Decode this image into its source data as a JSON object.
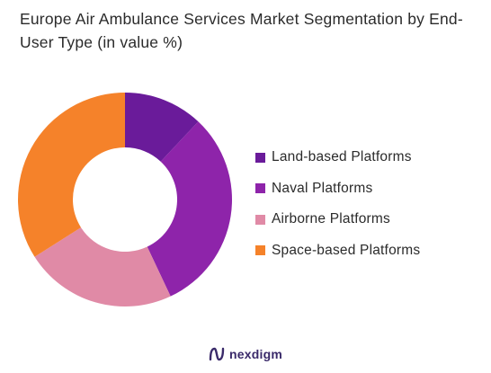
{
  "chart_data": {
    "type": "pie",
    "title": "Europe Air Ambulance Services Market Segmentation by End-User Type (in value %)",
    "categories": [
      "Land-based Platforms",
      "Naval Platforms",
      "Airborne Platforms",
      "Space-based Platforms"
    ],
    "values": [
      12,
      31,
      23,
      34
    ],
    "colors": [
      "#6a1b9a",
      "#8e24aa",
      "#e08aa6",
      "#f5822a"
    ],
    "donut": true,
    "legend_position": "right"
  },
  "brand": {
    "name": "nexdigm",
    "icon": "nexdigm-logo-icon",
    "color": "#3a2a6a"
  }
}
